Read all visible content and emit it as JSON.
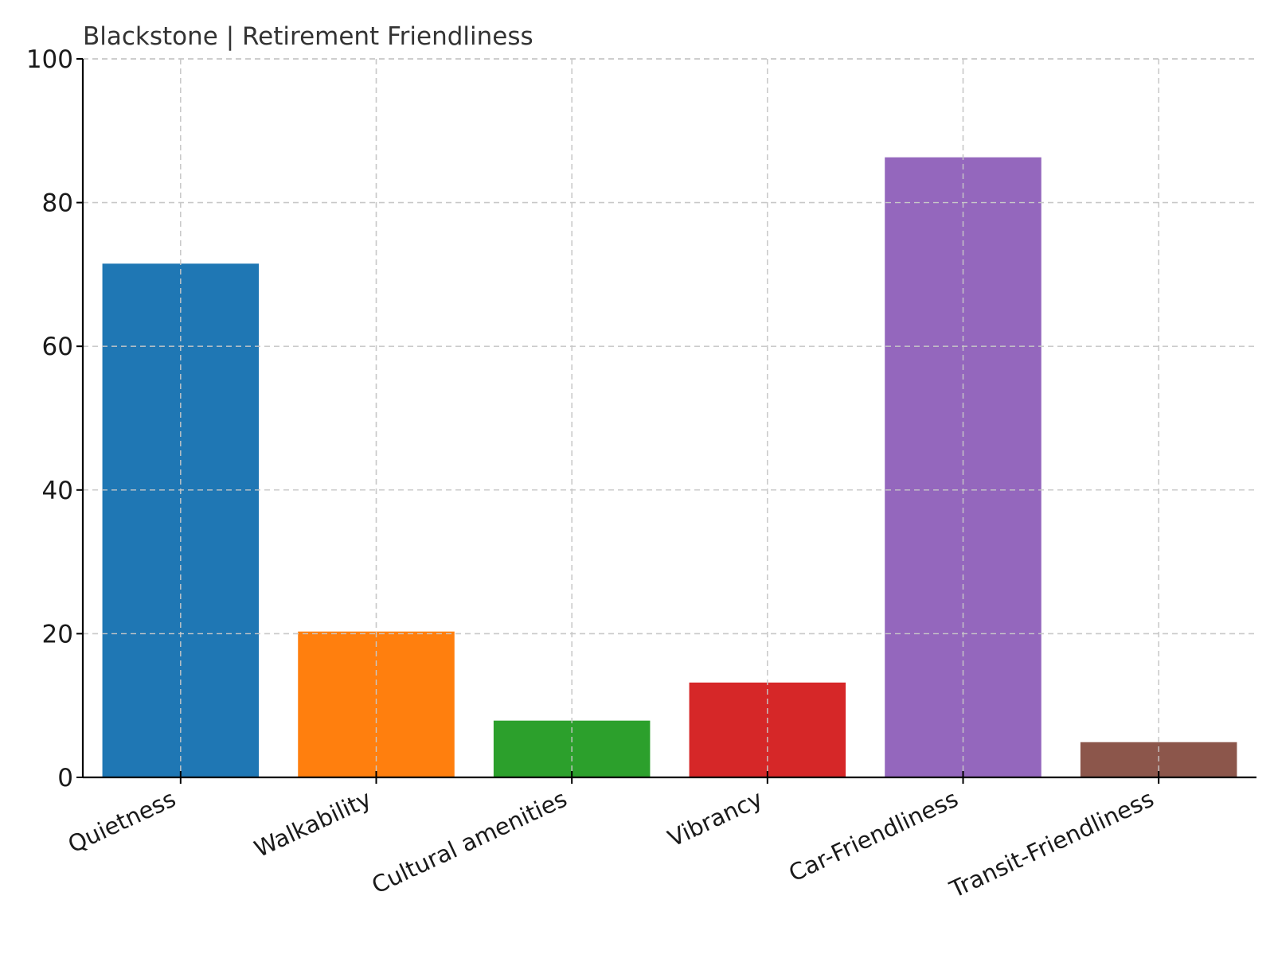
{
  "chart_data": {
    "type": "bar",
    "title": "Blackstone | Retirement Friendliness",
    "xlabel": "",
    "ylabel": "",
    "categories": [
      "Quietness",
      "Walkability",
      "Cultural amenities",
      "Vibrancy",
      "Car-Friendliness",
      "Transit-Friendliness"
    ],
    "values": [
      71.5,
      20.3,
      7.9,
      13.2,
      86.3,
      4.9
    ],
    "colors": [
      "#1f77b4",
      "#ff7f0e",
      "#2ca02c",
      "#d62728",
      "#9467bd",
      "#8c564b"
    ],
    "ylim": [
      0,
      100
    ],
    "yticks": [
      "0",
      "20",
      "40",
      "60",
      "80",
      "100"
    ],
    "grid": true,
    "legend": "none"
  }
}
